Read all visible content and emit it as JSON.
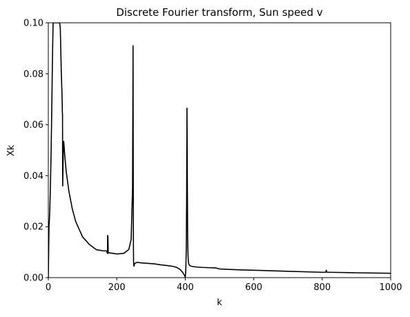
{
  "chart_data": {
    "type": "line",
    "title": "Discrete Fourier transform, Sun speed v",
    "xlabel": "k",
    "ylabel": "Xk",
    "xlim": [
      0,
      1000
    ],
    "ylim": [
      0,
      0.1
    ],
    "xticks": [
      0,
      200,
      400,
      600,
      800,
      1000
    ],
    "yticks": [
      0.0,
      0.02,
      0.04,
      0.06,
      0.08,
      0.1
    ],
    "xtick_labels": [
      "0",
      "200",
      "400",
      "600",
      "800",
      "1000"
    ],
    "ytick_labels": [
      "0.00",
      "0.02",
      "0.04",
      "0.06",
      "0.08",
      "0.10"
    ],
    "grid": false,
    "line_color": "#000000",
    "series": [
      {
        "x": [
          0,
          2,
          4,
          6,
          8,
          10,
          12,
          14,
          15,
          16,
          20,
          25,
          30,
          33,
          35,
          36,
          38,
          40,
          41,
          41.5,
          42,
          43,
          44,
          45,
          48,
          52,
          60,
          70,
          80,
          100,
          120,
          140,
          160,
          170,
          173,
          173,
          174,
          174,
          175,
          176,
          180,
          200,
          220,
          235,
          242,
          246,
          247,
          247.5,
          248,
          248.5,
          249,
          250,
          252,
          255,
          260,
          270,
          290,
          310,
          330,
          350,
          365,
          375,
          385,
          393,
          398,
          400,
          401,
          402,
          403,
          404,
          405,
          406,
          407,
          408,
          409,
          410,
          412,
          415,
          420,
          430,
          450,
          490,
          495,
          500,
          550,
          600,
          700,
          800,
          810,
          812,
          814,
          820,
          900,
          1000
        ],
        "y": [
          0.0,
          0.02,
          0.025,
          0.035,
          0.048,
          0.065,
          0.085,
          0.1,
          0.1,
          0.1,
          0.1,
          0.1,
          0.1,
          0.1,
          0.098,
          0.092,
          0.08,
          0.072,
          0.065,
          0.064,
          0.036,
          0.044,
          0.052,
          0.0535,
          0.048,
          0.042,
          0.034,
          0.027,
          0.022,
          0.016,
          0.013,
          0.011,
          0.0105,
          0.0105,
          0.0095,
          0.0165,
          0.0095,
          0.0165,
          0.0098,
          0.0098,
          0.0097,
          0.0093,
          0.0095,
          0.011,
          0.015,
          0.035,
          0.07,
          0.091,
          0.05,
          0.015,
          0.006,
          0.0045,
          0.0055,
          0.0058,
          0.006,
          0.0058,
          0.0056,
          0.0054,
          0.005,
          0.0047,
          0.0044,
          0.004,
          0.0032,
          0.002,
          0.0008,
          0.0003,
          0.0015,
          0.005,
          0.012,
          0.03,
          0.0665,
          0.04,
          0.016,
          0.009,
          0.0065,
          0.0055,
          0.0049,
          0.0046,
          0.0044,
          0.0042,
          0.004,
          0.0038,
          0.0036,
          0.0034,
          0.0031,
          0.0029,
          0.0025,
          0.0021,
          0.0021,
          0.0029,
          0.0021,
          0.0021,
          0.0019,
          0.0017
        ]
      }
    ]
  }
}
